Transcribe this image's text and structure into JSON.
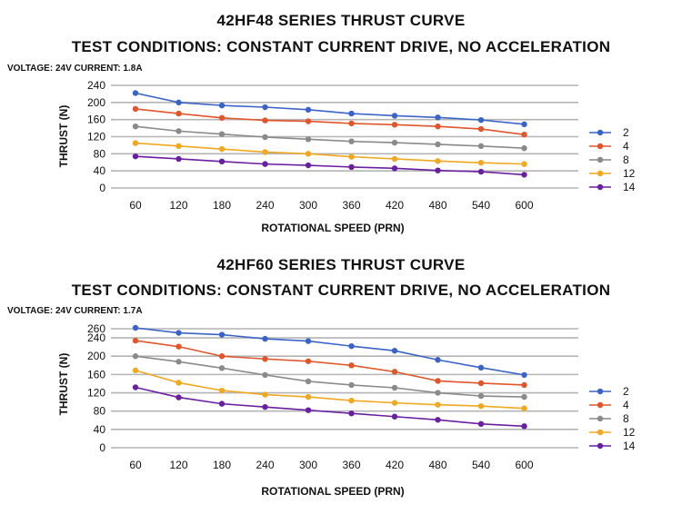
{
  "charts": [
    {
      "title": "42HF48 SERIES THRUST CURVE",
      "subtitle": "TEST CONDITIONS: CONSTANT CURRENT DRIVE, NO ACCELERATION",
      "conditions": "VOLTAGE: 24V CURRENT: 1.8A"
    },
    {
      "title": "42HF60 SERIES THRUST CURVE",
      "subtitle": "TEST CONDITIONS: CONSTANT CURRENT DRIVE, NO ACCELERATION",
      "conditions": "VOLTAGE: 24V CURRENT: 1.7A"
    }
  ],
  "chart_data": [
    {
      "type": "line",
      "title": "42HF48 SERIES THRUST CURVE",
      "subtitle": "TEST CONDITIONS: CONSTANT CURRENT DRIVE, NO ACCELERATION",
      "xlabel": "ROTATIONAL SPEED (PRN)",
      "ylabel": "THRUST (N)",
      "categories": [
        "60",
        "120",
        "180",
        "240",
        "300",
        "360",
        "420",
        "480",
        "540",
        "600"
      ],
      "yticks": [
        "0",
        "40",
        "80",
        "120",
        "160",
        "200",
        "240"
      ],
      "ylim": [
        0,
        240
      ],
      "grid": true,
      "legend": "right",
      "series": [
        {
          "name": "2",
          "color": "#3a63c7",
          "values": [
            222,
            200,
            193,
            189,
            183,
            174,
            169,
            165,
            159,
            149
          ]
        },
        {
          "name": "4",
          "color": "#e0552a",
          "values": [
            185,
            174,
            164,
            158,
            156,
            151,
            148,
            144,
            138,
            125
          ]
        },
        {
          "name": "8",
          "color": "#8a8a8a",
          "values": [
            144,
            133,
            126,
            119,
            114,
            109,
            106,
            102,
            98,
            93
          ]
        },
        {
          "name": "12",
          "color": "#f0a820",
          "values": [
            105,
            98,
            91,
            84,
            80,
            73,
            68,
            63,
            59,
            56
          ]
        },
        {
          "name": "14",
          "color": "#6a1fa0",
          "values": [
            74,
            68,
            62,
            56,
            53,
            49,
            46,
            41,
            38,
            31
          ]
        }
      ]
    },
    {
      "type": "line",
      "title": "42HF60 SERIES THRUST CURVE",
      "subtitle": "TEST CONDITIONS: CONSTANT CURRENT DRIVE, NO ACCELERATION",
      "xlabel": "ROTATIONAL SPEED (PRN)",
      "ylabel": "THRUST (N)",
      "categories": [
        "60",
        "120",
        "180",
        "240",
        "300",
        "360",
        "420",
        "480",
        "540",
        "600"
      ],
      "yticks": [
        "0",
        "40",
        "80",
        "120",
        "160",
        "200",
        "240",
        "260"
      ],
      "ylim": [
        0,
        260
      ],
      "grid": true,
      "legend": "right",
      "series": [
        {
          "name": "2",
          "color": "#3a63c7",
          "values": [
            262,
            251,
            247,
            238,
            233,
            222,
            212,
            192,
            175,
            159
          ]
        },
        {
          "name": "4",
          "color": "#e0552a",
          "values": [
            234,
            221,
            200,
            194,
            189,
            180,
            166,
            146,
            141,
            137
          ]
        },
        {
          "name": "8",
          "color": "#8a8a8a",
          "values": [
            200,
            188,
            174,
            159,
            145,
            137,
            131,
            120,
            113,
            111
          ]
        },
        {
          "name": "12",
          "color": "#f0a820",
          "values": [
            169,
            142,
            125,
            116,
            111,
            103,
            98,
            94,
            91,
            86
          ]
        },
        {
          "name": "14",
          "color": "#6a1fa0",
          "values": [
            132,
            110,
            96,
            89,
            82,
            75,
            68,
            61,
            52,
            47
          ]
        }
      ]
    }
  ]
}
